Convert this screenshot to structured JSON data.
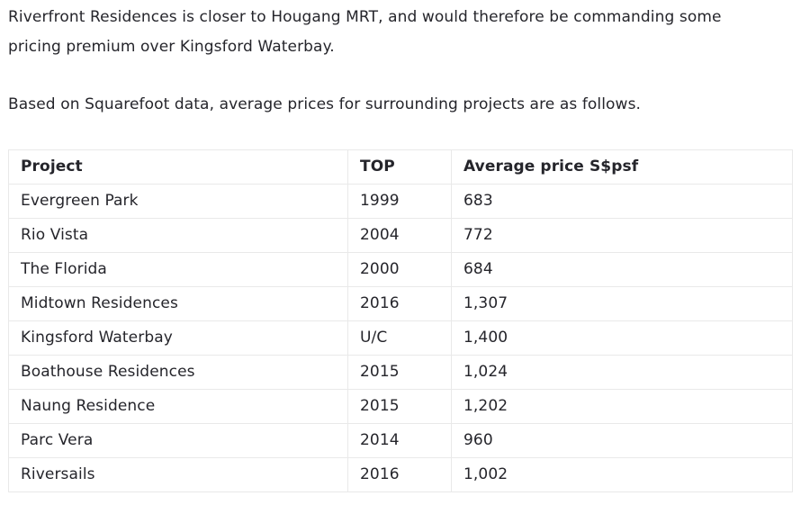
{
  "intro": {
    "lines": [
      "Riverfront Residences is closer to Hougang MRT, and would therefore be commanding some",
      "pricing premium over Kingsford Waterbay."
    ]
  },
  "subtitle": "Based on Squarefoot data, average prices for surrounding projects are as follows.",
  "table": {
    "columns": [
      "Project",
      "TOP",
      "Average price S$psf"
    ],
    "rows": [
      {
        "project": "Evergreen Park",
        "top": "1999",
        "price": "683"
      },
      {
        "project": "Rio Vista",
        "top": "2004",
        "price": "772"
      },
      {
        "project": "The Florida",
        "top": "2000",
        "price": "684"
      },
      {
        "project": "Midtown Residences",
        "top": "2016",
        "price": "1,307"
      },
      {
        "project": "Kingsford Waterbay",
        "top": "U/C",
        "price": "1,400"
      },
      {
        "project": "Boathouse Residences",
        "top": "2015",
        "price": "1,024"
      },
      {
        "project": "Naung Residence",
        "top": "2015",
        "price": "1,202"
      },
      {
        "project": "Parc Vera",
        "top": "2014",
        "price": "960"
      },
      {
        "project": "Riversails",
        "top": "2016",
        "price": "1,002"
      }
    ]
  },
  "colors": {
    "text": "#25252b",
    "border": "#e9e9e9",
    "background": "#ffffff"
  }
}
